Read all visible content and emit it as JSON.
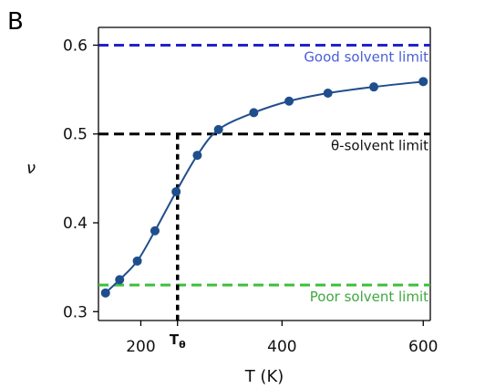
{
  "chart_data": {
    "type": "line",
    "panel_label": "B",
    "xlabel": "T (K)",
    "ylabel": "ν",
    "xlim": [
      140,
      610
    ],
    "ylim": [
      0.29,
      0.62
    ],
    "x_ticks": [
      200,
      400,
      600
    ],
    "y_ticks": [
      0.3,
      0.4,
      0.5,
      0.6
    ],
    "x_tick_labels": [
      "200",
      "400",
      "600"
    ],
    "y_tick_labels": [
      "0.3",
      "0.4",
      "0.5",
      "0.6"
    ],
    "special_tick": {
      "label": "T",
      "subscript": "θ",
      "x": 252
    },
    "grid": false,
    "series": [
      {
        "color": "#1f4e8c",
        "x": [
          150,
          170,
          195,
          220,
          250,
          280,
          310,
          360,
          410,
          465,
          530,
          600
        ],
        "y": [
          0.321,
          0.336,
          0.357,
          0.391,
          0.435,
          0.476,
          0.505,
          0.524,
          0.537,
          0.546,
          0.553,
          0.559
        ]
      }
    ],
    "reference_lines": [
      {
        "y": 0.6,
        "label": "Good solvent limit",
        "color": "#2222cc",
        "label_color": "#4a5fd6"
      },
      {
        "y": 0.5,
        "label": "θ-solvent limit",
        "color": "#000000",
        "label_color": "#111111"
      },
      {
        "y": 0.33,
        "label": "Poor solvent limit",
        "color": "#3cc03c",
        "label_color": "#3fa83f"
      }
    ],
    "theta_marker": {
      "x": 252,
      "y": 0.5
    }
  }
}
